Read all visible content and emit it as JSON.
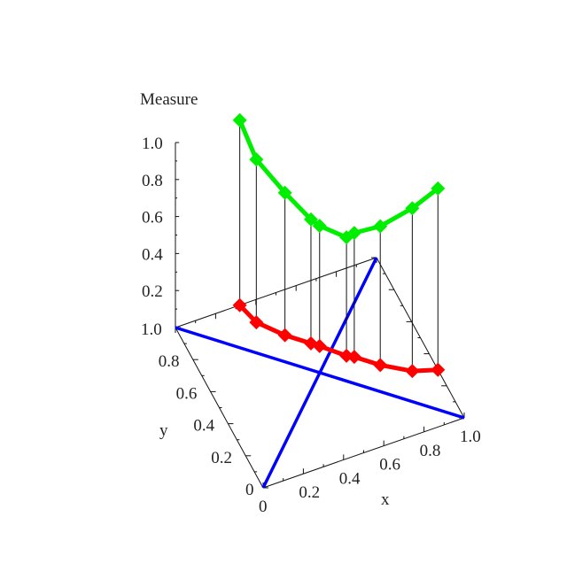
{
  "chart_data": {
    "type": "line",
    "projection": "3d",
    "zlabel": "Measure",
    "xlabel": "x",
    "ylabel": "y",
    "xlim": [
      0,
      1
    ],
    "ylim": [
      0,
      1
    ],
    "zlim": [
      0,
      1
    ],
    "x_ticks": [
      "0",
      "0.2",
      "0.4",
      "0.6",
      "0.8",
      "1.0"
    ],
    "y_ticks": [
      "0",
      "0.2",
      "0.4",
      "0.6",
      "0.8",
      "1.0"
    ],
    "z_ticks": [
      "0.2",
      "0.4",
      "0.6",
      "0.8",
      "1.0"
    ],
    "grid": false,
    "series": [
      {
        "color": "#00ee00",
        "marker": "diamond",
        "points": [
          {
            "x": 0.32,
            "y": 1.0,
            "z": 1.0
          },
          {
            "x": 0.35,
            "y": 0.88,
            "z": 0.88
          },
          {
            "x": 0.44,
            "y": 0.76,
            "z": 0.77
          },
          {
            "x": 0.53,
            "y": 0.67,
            "z": 0.67
          },
          {
            "x": 0.56,
            "y": 0.64,
            "z": 0.65
          },
          {
            "x": 0.65,
            "y": 0.54,
            "z": 0.64
          },
          {
            "x": 0.68,
            "y": 0.52,
            "z": 0.67
          },
          {
            "x": 0.77,
            "y": 0.43,
            "z": 0.75
          },
          {
            "x": 0.89,
            "y": 0.34,
            "z": 0.88
          },
          {
            "x": 1.0,
            "y": 0.3,
            "z": 0.98
          }
        ]
      },
      {
        "color": "#ff0000",
        "marker": "diamond",
        "projected_on_floor": true
      }
    ],
    "reference_lines": [
      {
        "color": "#0000ff",
        "from": [
          0,
          1
        ],
        "to": [
          1,
          0
        ]
      },
      {
        "color": "#0000ff",
        "from": [
          0,
          0
        ],
        "to": [
          1,
          1
        ]
      }
    ]
  }
}
